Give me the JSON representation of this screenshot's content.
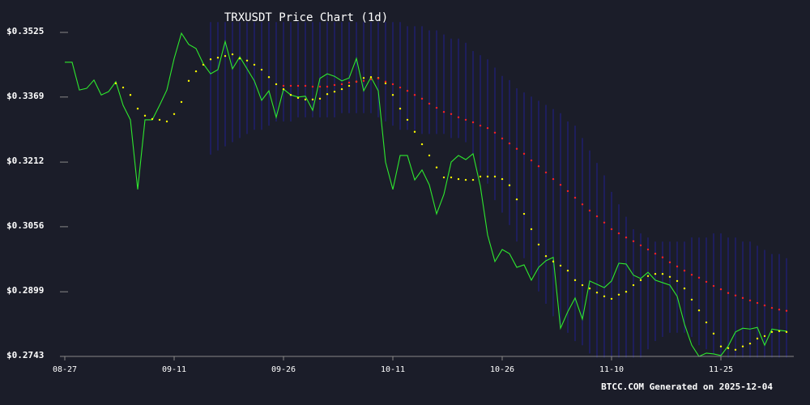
{
  "chart_data": {
    "type": "line",
    "title": "TRXUSDT Price Chart (1d)",
    "footer": "BTCC.COM Generated on 2025-12-04",
    "categories": [
      "08-27",
      null,
      null,
      null,
      null,
      null,
      null,
      null,
      null,
      null,
      null,
      null,
      null,
      null,
      null,
      "09-11",
      null,
      null,
      null,
      null,
      null,
      null,
      null,
      null,
      null,
      null,
      null,
      null,
      null,
      null,
      "09-26",
      null,
      null,
      null,
      null,
      null,
      null,
      null,
      null,
      null,
      null,
      null,
      null,
      null,
      null,
      "10-11",
      null,
      null,
      null,
      null,
      null,
      null,
      null,
      null,
      null,
      null,
      null,
      null,
      null,
      null,
      "10-26",
      null,
      null,
      null,
      null,
      null,
      null,
      null,
      null,
      null,
      null,
      null,
      null,
      null,
      null,
      "11-10",
      null,
      null,
      null,
      null,
      null,
      null,
      null,
      null,
      null,
      null,
      null,
      null,
      null,
      null,
      "11-25",
      null,
      null,
      null,
      null,
      null,
      null,
      null,
      null,
      null
    ],
    "ylim": [
      0.2743,
      0.3525
    ],
    "yticks": [
      {
        "value": 0.2743,
        "label": "$0.2743"
      },
      {
        "value": 0.2899,
        "label": "$0.2899"
      },
      {
        "value": 0.3056,
        "label": "$0.3056"
      },
      {
        "value": 0.3212,
        "label": "$0.3212"
      },
      {
        "value": 0.3369,
        "label": "$0.3369"
      },
      {
        "value": 0.3525,
        "label": "$0.3525"
      }
    ],
    "band": {
      "color": "#20207e",
      "upper": [
        null,
        null,
        null,
        null,
        null,
        null,
        null,
        null,
        null,
        null,
        null,
        null,
        null,
        null,
        null,
        null,
        null,
        null,
        null,
        null,
        0.355,
        0.355,
        0.355,
        0.355,
        0.355,
        0.355,
        0.355,
        0.355,
        0.355,
        0.355,
        0.355,
        0.355,
        0.355,
        0.355,
        0.355,
        0.355,
        0.355,
        0.355,
        0.355,
        0.355,
        0.355,
        0.355,
        0.355,
        0.355,
        0.355,
        0.355,
        0.355,
        0.354,
        0.354,
        0.354,
        0.353,
        0.353,
        0.352,
        0.351,
        0.351,
        0.35,
        0.348,
        0.347,
        0.346,
        0.344,
        0.342,
        0.341,
        0.339,
        0.338,
        0.337,
        0.336,
        0.335,
        0.334,
        0.333,
        0.331,
        0.33,
        0.327,
        0.324,
        0.321,
        0.318,
        0.314,
        0.311,
        0.308,
        0.305,
        0.304,
        0.303,
        0.302,
        0.302,
        0.302,
        0.302,
        0.302,
        0.303,
        0.303,
        0.303,
        0.304,
        0.304,
        0.303,
        0.303,
        0.302,
        0.302,
        0.301,
        0.3,
        0.299,
        0.299,
        0.298
      ],
      "lower": [
        null,
        null,
        null,
        null,
        null,
        null,
        null,
        null,
        null,
        null,
        null,
        null,
        null,
        null,
        null,
        null,
        null,
        null,
        null,
        null,
        0.323,
        0.324,
        0.325,
        0.326,
        0.327,
        0.328,
        0.329,
        0.329,
        0.33,
        0.331,
        0.331,
        0.331,
        0.332,
        0.332,
        0.332,
        0.332,
        0.332,
        0.332,
        0.333,
        0.333,
        0.333,
        0.333,
        0.333,
        0.332,
        0.331,
        0.33,
        0.329,
        0.329,
        0.329,
        0.328,
        0.328,
        0.328,
        0.328,
        0.327,
        0.327,
        0.326,
        0.323,
        0.319,
        0.316,
        0.312,
        0.309,
        0.306,
        0.302,
        0.298,
        0.294,
        0.29,
        0.287,
        0.284,
        0.282,
        0.28,
        0.278,
        0.277,
        0.275,
        0.274,
        0.274,
        0.274,
        0.274,
        0.274,
        0.274,
        0.274,
        0.276,
        0.278,
        0.279,
        0.28,
        0.28,
        0.28,
        0.279,
        0.277,
        0.276,
        0.275,
        0.274,
        0.274,
        0.274,
        0.274,
        0.274,
        0.274,
        0.274,
        0.274,
        0.274,
        0.274
      ]
    },
    "series": [
      {
        "style": "line",
        "color": "#2ee82e",
        "values": [
          0.3453,
          0.3453,
          0.3386,
          0.339,
          0.341,
          0.3374,
          0.3382,
          0.3406,
          0.3349,
          0.3314,
          0.3146,
          0.3314,
          0.3314,
          0.3349,
          0.3386,
          0.3462,
          0.3523,
          0.3496,
          0.3486,
          0.3449,
          0.3425,
          0.3435,
          0.3503,
          0.3437,
          0.3466,
          0.3437,
          0.3408,
          0.3361,
          0.3384,
          0.332,
          0.3388,
          0.3374,
          0.3369,
          0.3371,
          0.3337,
          0.3414,
          0.3425,
          0.3419,
          0.3408,
          0.3415,
          0.3462,
          0.3384,
          0.3417,
          0.3384,
          0.3212,
          0.3146,
          0.3228,
          0.3228,
          0.3169,
          0.3193,
          0.3157,
          0.3087,
          0.3134,
          0.3212,
          0.3228,
          0.3218,
          0.3232,
          0.3154,
          0.3036,
          0.2972,
          0.3001,
          0.2991,
          0.2958,
          0.2964,
          0.2927,
          0.2958,
          0.2974,
          0.2982,
          0.2811,
          0.2851,
          0.2884,
          0.2833,
          0.2925,
          0.2917,
          0.2909,
          0.2925,
          0.2968,
          0.2966,
          0.2939,
          0.2931,
          0.2946,
          0.2927,
          0.2921,
          0.2915,
          0.2888,
          0.2821,
          0.277,
          0.2743,
          0.2751,
          0.2749,
          0.2745,
          0.2768,
          0.2802,
          0.2811,
          0.2809,
          0.2813,
          0.277,
          0.2809,
          0.2806,
          0.2804
        ]
      },
      {
        "style": "dots",
        "color": "#ffff00",
        "values": [
          null,
          null,
          null,
          null,
          null,
          null,
          null,
          0.3402,
          0.3392,
          0.3374,
          0.3341,
          0.3324,
          0.3316,
          0.3314,
          0.331,
          0.3328,
          0.3357,
          0.3408,
          0.3431,
          0.3447,
          0.346,
          0.3464,
          0.3468,
          0.3472,
          0.3462,
          0.3457,
          0.3447,
          0.3435,
          0.3417,
          0.34,
          0.3388,
          0.3374,
          0.3367,
          0.3363,
          0.3363,
          0.3365,
          0.3376,
          0.3382,
          0.3388,
          0.3396,
          0.3406,
          0.3415,
          0.3417,
          0.3415,
          0.3402,
          0.3374,
          0.3341,
          0.3314,
          0.3285,
          0.3255,
          0.3228,
          0.3199,
          0.3175,
          0.3175,
          0.3171,
          0.3169,
          0.3169,
          0.3177,
          0.3177,
          0.3177,
          0.3171,
          0.3156,
          0.3122,
          0.3087,
          0.305,
          0.3013,
          0.2985,
          0.2972,
          0.2962,
          0.295,
          0.2927,
          0.2915,
          0.2907,
          0.2897,
          0.2888,
          0.2882,
          0.2892,
          0.2899,
          0.2915,
          0.2927,
          0.2937,
          0.2942,
          0.2942,
          0.2935,
          0.2925,
          0.2907,
          0.288,
          0.2854,
          0.2825,
          0.2798,
          0.2767,
          0.2763,
          0.2759,
          0.2767,
          0.2774,
          0.2786,
          0.2792,
          0.2802,
          0.2804,
          0.2802
        ]
      },
      {
        "style": "dots",
        "color": "#ff2222",
        "values": [
          null,
          null,
          null,
          null,
          null,
          null,
          null,
          null,
          null,
          null,
          null,
          null,
          null,
          null,
          null,
          null,
          null,
          null,
          null,
          null,
          null,
          null,
          null,
          null,
          null,
          null,
          null,
          null,
          null,
          null,
          0.3396,
          0.3396,
          0.3396,
          0.3396,
          0.3394,
          0.3394,
          0.3394,
          0.3398,
          0.34,
          0.3404,
          0.3406,
          0.3408,
          0.3412,
          0.3414,
          0.3406,
          0.34,
          0.3392,
          0.3384,
          0.3374,
          0.3365,
          0.3353,
          0.3343,
          0.3333,
          0.3328,
          0.332,
          0.3314,
          0.3308,
          0.33,
          0.3294,
          0.3283,
          0.3269,
          0.3257,
          0.3244,
          0.3232,
          0.3216,
          0.3202,
          0.3187,
          0.3171,
          0.3157,
          0.3142,
          0.3126,
          0.311,
          0.3095,
          0.3081,
          0.3066,
          0.305,
          0.304,
          0.303,
          0.3021,
          0.3011,
          0.3001,
          0.2991,
          0.2982,
          0.297,
          0.296,
          0.295,
          0.294,
          0.2933,
          0.2923,
          0.2913,
          0.2905,
          0.2896,
          0.289,
          0.2884,
          0.2878,
          0.2872,
          0.2866,
          0.286,
          0.2856,
          0.2853
        ]
      }
    ]
  }
}
